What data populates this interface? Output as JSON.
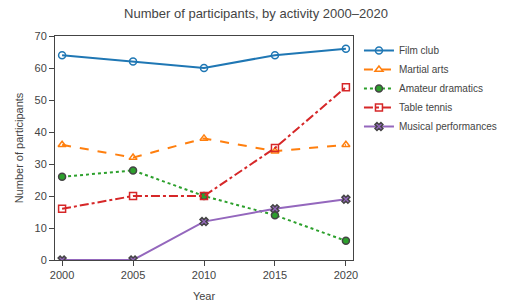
{
  "chart_data": {
    "type": "line",
    "title": "Number of participants, by activity 2000–2020",
    "x_label": "Year",
    "y_label": "Number of participants",
    "x": [
      2000,
      2005,
      2010,
      2015,
      2020
    ],
    "series": [
      {
        "name": "Film club",
        "values": [
          64,
          62,
          60,
          64,
          66
        ],
        "marker": "circle-open",
        "line_style": "solid"
      },
      {
        "name": "Martial arts",
        "values": [
          36,
          32,
          38,
          34,
          36
        ],
        "marker": "triangle-up-open",
        "line_style": "dash"
      },
      {
        "name": "Amateur dramatics",
        "values": [
          26,
          28,
          20,
          14,
          6
        ],
        "marker": "circle",
        "line_style": "dot"
      },
      {
        "name": "Table tennis",
        "values": [
          16,
          20,
          20,
          35,
          54
        ],
        "marker": "square-open",
        "line_style": "dashdot"
      },
      {
        "name": "Musical performances",
        "values": [
          0,
          0,
          12,
          16,
          19
        ],
        "marker": "x",
        "line_style": "solid"
      }
    ],
    "xlim": [
      1999.5,
      2020.5
    ],
    "xticks": [
      2000,
      2005,
      2010,
      2015,
      2020
    ],
    "ylim": [
      0,
      70
    ],
    "yticks": [
      0,
      10,
      20,
      30,
      40,
      50,
      60,
      70
    ],
    "grid": false,
    "legend": "right"
  }
}
